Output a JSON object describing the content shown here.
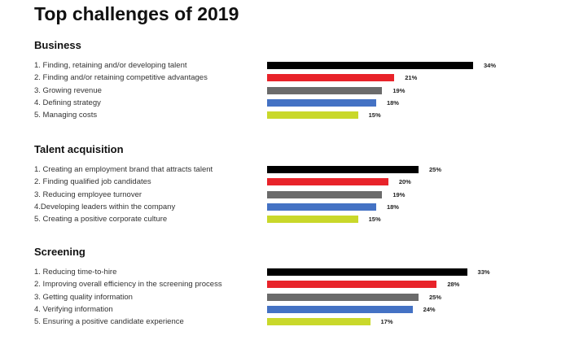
{
  "title": "Top challenges of 2019",
  "colors": [
    "#000000",
    "#e8232a",
    "#6b6b6b",
    "#4472c4",
    "#c9d82b"
  ],
  "chart_data": {
    "type": "bar",
    "orientation": "horizontal",
    "title": "Top challenges of 2019",
    "unit": "%",
    "groups": [
      {
        "name": "Business",
        "items": [
          {
            "label": "1.  Finding, retaining and/or developing talent",
            "value": 34,
            "value_label": "34%"
          },
          {
            "label": "2. Finding and/or retaining competitive advantages",
            "value": 21,
            "value_label": "21%"
          },
          {
            "label": "3. Growing revenue",
            "value": 19,
            "value_label": "19%"
          },
          {
            "label": "4. Defining strategy",
            "value": 18,
            "value_label": "18%"
          },
          {
            "label": "5. Managing costs",
            "value": 15,
            "value_label": "15%"
          }
        ]
      },
      {
        "name": "Talent acquisition",
        "items": [
          {
            "label": "1.  Creating an employment brand that attracts talent",
            "value": 25,
            "value_label": "25%"
          },
          {
            "label": "2. Finding qualified job candidates",
            "value": 20,
            "value_label": "20%"
          },
          {
            "label": "3. Reducing employee turnover",
            "value": 19,
            "value_label": "19%"
          },
          {
            "label": "4.Developing leaders within the company",
            "value": 18,
            "value_label": "18%"
          },
          {
            "label": "5. Creating a positive corporate culture",
            "value": 15,
            "value_label": "15%"
          }
        ]
      },
      {
        "name": "Screening",
        "items": [
          {
            "label": "1.  Reducing time-to-hire",
            "value": 33,
            "value_label": "33%"
          },
          {
            "label": "2. Improving overall efficiency in the screening process",
            "value": 28,
            "value_label": "28%"
          },
          {
            "label": "3. Getting quality information",
            "value": 25,
            "value_label": "25%"
          },
          {
            "label": "4. Verifying information",
            "value": 24,
            "value_label": "24%"
          },
          {
            "label": "5. Ensuring a positive candidate experience",
            "value": 17,
            "value_label": "17%"
          }
        ]
      }
    ]
  }
}
